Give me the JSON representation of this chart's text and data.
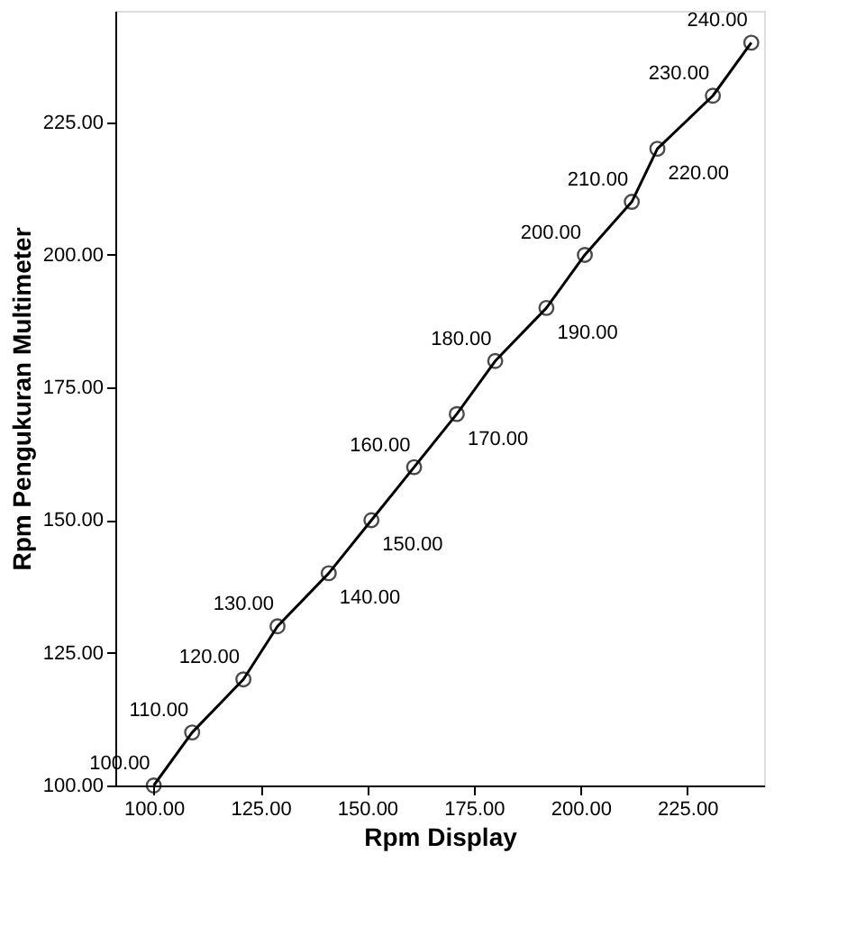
{
  "chart_data": {
    "type": "line",
    "xlabel": "Rpm Display",
    "ylabel": "Rpm Pengukuran Multimeter",
    "x": [
      100,
      109,
      121,
      129,
      141,
      151,
      161,
      171,
      180,
      192,
      201,
      212,
      218,
      231,
      240
    ],
    "series": [
      {
        "color": "#000000",
        "values": [
          100,
          110,
          120,
          130,
          140,
          150,
          160,
          170,
          180,
          190,
          200,
          210,
          220,
          230,
          240
        ]
      }
    ],
    "xlim": [
      91,
      243
    ],
    "xticks": [
      {
        "value": 100,
        "label": "100.00"
      },
      {
        "value": 125,
        "label": "125.00"
      },
      {
        "value": 150,
        "label": "150.00"
      },
      {
        "value": 175,
        "label": "175.00"
      },
      {
        "value": 200,
        "label": "200.00"
      },
      {
        "value": 225,
        "label": "225.00"
      }
    ],
    "ylim": [
      100,
      246
    ],
    "yticks": [
      {
        "value": 100,
        "label": "100.00"
      },
      {
        "value": 125,
        "label": "125.00"
      },
      {
        "value": 150,
        "label": "150.00"
      },
      {
        "value": 175,
        "label": "175.00"
      },
      {
        "value": 200,
        "label": "200.00"
      },
      {
        "value": 225,
        "label": "225.00"
      }
    ],
    "value_labels": [
      "100.00",
      "110.00",
      "120.00",
      "130.00",
      "140.00",
      "150.00",
      "160.00",
      "170.00",
      "180.00",
      "190.00",
      "200.00",
      "210.00",
      "220.00",
      "230.00",
      "240.00"
    ],
    "marker": "circle",
    "line_style": "solid",
    "grid": false
  }
}
